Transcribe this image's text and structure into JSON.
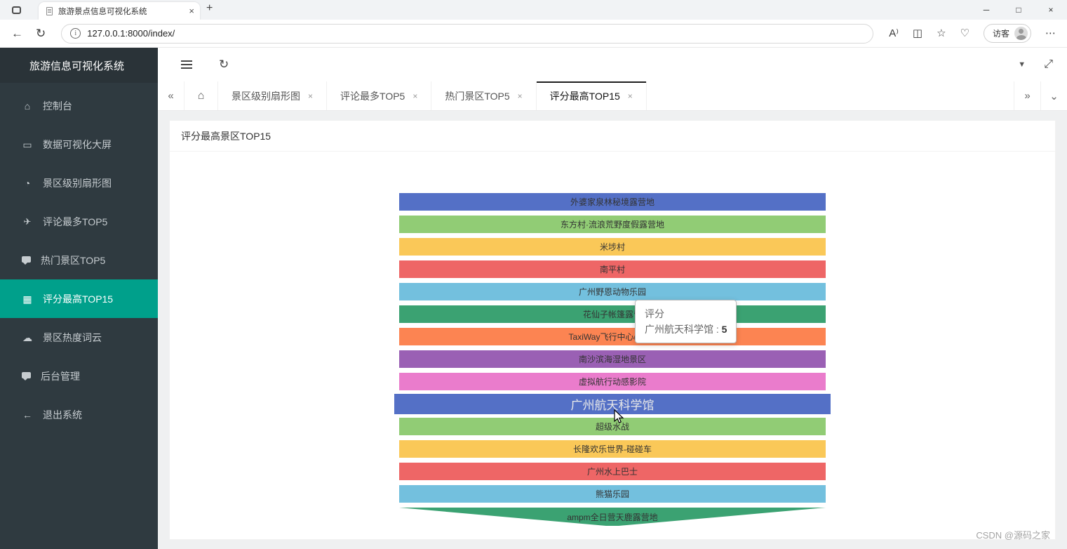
{
  "browser": {
    "tab_title": "旅游景点信息可视化系统",
    "url": "127.0.0.1:8000/index/",
    "visitor_label": "访客",
    "icons": {
      "close_tab": "×",
      "new_tab": "+",
      "minimize": "─",
      "maximize": "□",
      "close": "×",
      "back": "←",
      "refresh": "↻",
      "info": "i",
      "read_aloud": "A⁾",
      "split_screen": "◫",
      "favorites": "☆",
      "essentials": "♡",
      "more": "⋯"
    }
  },
  "sidebar": {
    "title": "旅游信息可视化系统",
    "items": [
      {
        "id": "console",
        "label": "控制台",
        "icon": "home",
        "active": false
      },
      {
        "id": "bigscreen",
        "label": "数据可视化大屏",
        "icon": "screen",
        "active": false
      },
      {
        "id": "level-pie",
        "label": "景区级别扇形图",
        "icon": "pie",
        "active": false
      },
      {
        "id": "comments-top5",
        "label": "评论最多TOP5",
        "icon": "plane",
        "active": false
      },
      {
        "id": "hot-top5",
        "label": "热门景区TOP5",
        "icon": "comment",
        "active": false
      },
      {
        "id": "rating-top15",
        "label": "评分最高TOP15",
        "icon": "image",
        "active": true
      },
      {
        "id": "wordcloud",
        "label": "景区热度词云",
        "icon": "cloud",
        "active": false
      },
      {
        "id": "admin",
        "label": "后台管理",
        "icon": "comment",
        "active": false
      },
      {
        "id": "logout",
        "label": "退出系统",
        "icon": "exit",
        "active": false
      }
    ]
  },
  "header_icons": {
    "back_page": "«",
    "forward_page": "»",
    "home": "⌂",
    "caret": "▼",
    "fullscreen": "⤢",
    "refresh": "↻",
    "collapse_more": "⌄"
  },
  "tabsbar": {
    "close_glyph": "×",
    "tabs": [
      {
        "id": "level-pie",
        "label": "景区级别扇形图",
        "active": false
      },
      {
        "id": "comments-top5",
        "label": "评论最多TOP5",
        "active": false
      },
      {
        "id": "hot-top5",
        "label": "热门景区TOP5",
        "active": false
      },
      {
        "id": "rating-top15",
        "label": "评分最高TOP15",
        "active": true
      }
    ]
  },
  "card": {
    "title": "评分最高景区TOP15"
  },
  "tooltip": {
    "series": "评分",
    "name": "广州航天科学馆",
    "separator": " : ",
    "value": "5"
  },
  "chart_data": {
    "type": "funnel",
    "title": "评分最高景区TOP15",
    "series_name": "评分",
    "sort": "descending",
    "legend_position": "none",
    "value_range": [
      0,
      5
    ],
    "items": [
      {
        "name": "外婆家泉林秘境露营地",
        "value": 5,
        "color": "#5470c6"
      },
      {
        "name": "东方村·流浪荒野度假露营地",
        "value": 5,
        "color": "#91cc75"
      },
      {
        "name": "米埗村",
        "value": 5,
        "color": "#fac858"
      },
      {
        "name": "南平村",
        "value": 5,
        "color": "#ee6666"
      },
      {
        "name": "广州野恩动物乐园",
        "value": 5,
        "color": "#73c0de"
      },
      {
        "name": "花仙子帐篷露营",
        "value": 5,
        "color": "#3ba272"
      },
      {
        "name": "TaxiWay飞行中心(广州)",
        "value": 5,
        "color": "#fc8452"
      },
      {
        "name": "南沙滨海湿地景区",
        "value": 5,
        "color": "#9a60b4"
      },
      {
        "name": "虚拟航行动感影院",
        "value": 5,
        "color": "#ea7ccc"
      },
      {
        "name": "广州航天科学馆",
        "value": 5,
        "color": "#5470c6",
        "highlighted": true
      },
      {
        "name": "超级水战",
        "value": 5,
        "color": "#91cc75"
      },
      {
        "name": "长隆欢乐世界-碰碰车",
        "value": 5,
        "color": "#fac858"
      },
      {
        "name": "广州水上巴士",
        "value": 5,
        "color": "#ee6666"
      },
      {
        "name": "熊猫乐园",
        "value": 5,
        "color": "#73c0de"
      },
      {
        "name": "ampm全日营天鹿露营地",
        "value": 5,
        "color": "#3ba272"
      }
    ]
  },
  "watermark": "CSDN @源码之家"
}
